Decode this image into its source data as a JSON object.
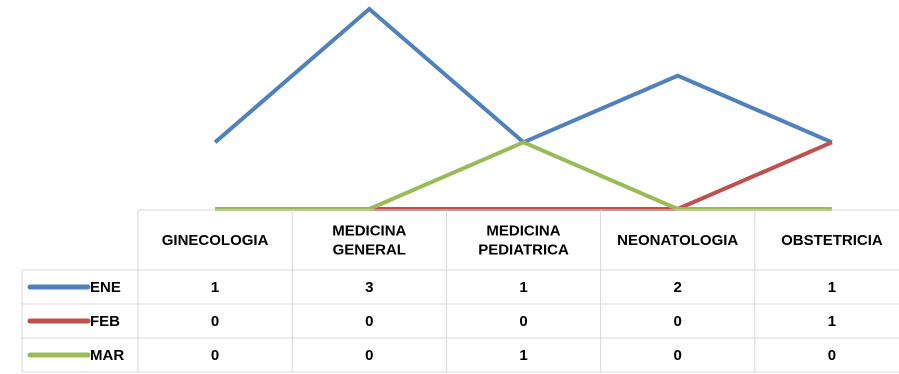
{
  "chart_data": {
    "type": "line",
    "categories": [
      "GINECOLOGIA",
      "MEDICINA GENERAL",
      "MEDICINA PEDIATRICA",
      "NEONATOLOGIA",
      "OBSTETRICIA"
    ],
    "series": [
      {
        "name": "ENE",
        "values": [
          1,
          3,
          1,
          2,
          1
        ],
        "color": "#4f81bd"
      },
      {
        "name": "FEB",
        "values": [
          0,
          0,
          0,
          0,
          1
        ],
        "color": "#c0504d"
      },
      {
        "name": "MAR",
        "values": [
          0,
          0,
          1,
          0,
          0
        ],
        "color": "#9bbb59"
      }
    ],
    "ylim": [
      0,
      3
    ],
    "data_table": true,
    "grid": false,
    "title": "",
    "xlabel": "",
    "ylabel": ""
  }
}
